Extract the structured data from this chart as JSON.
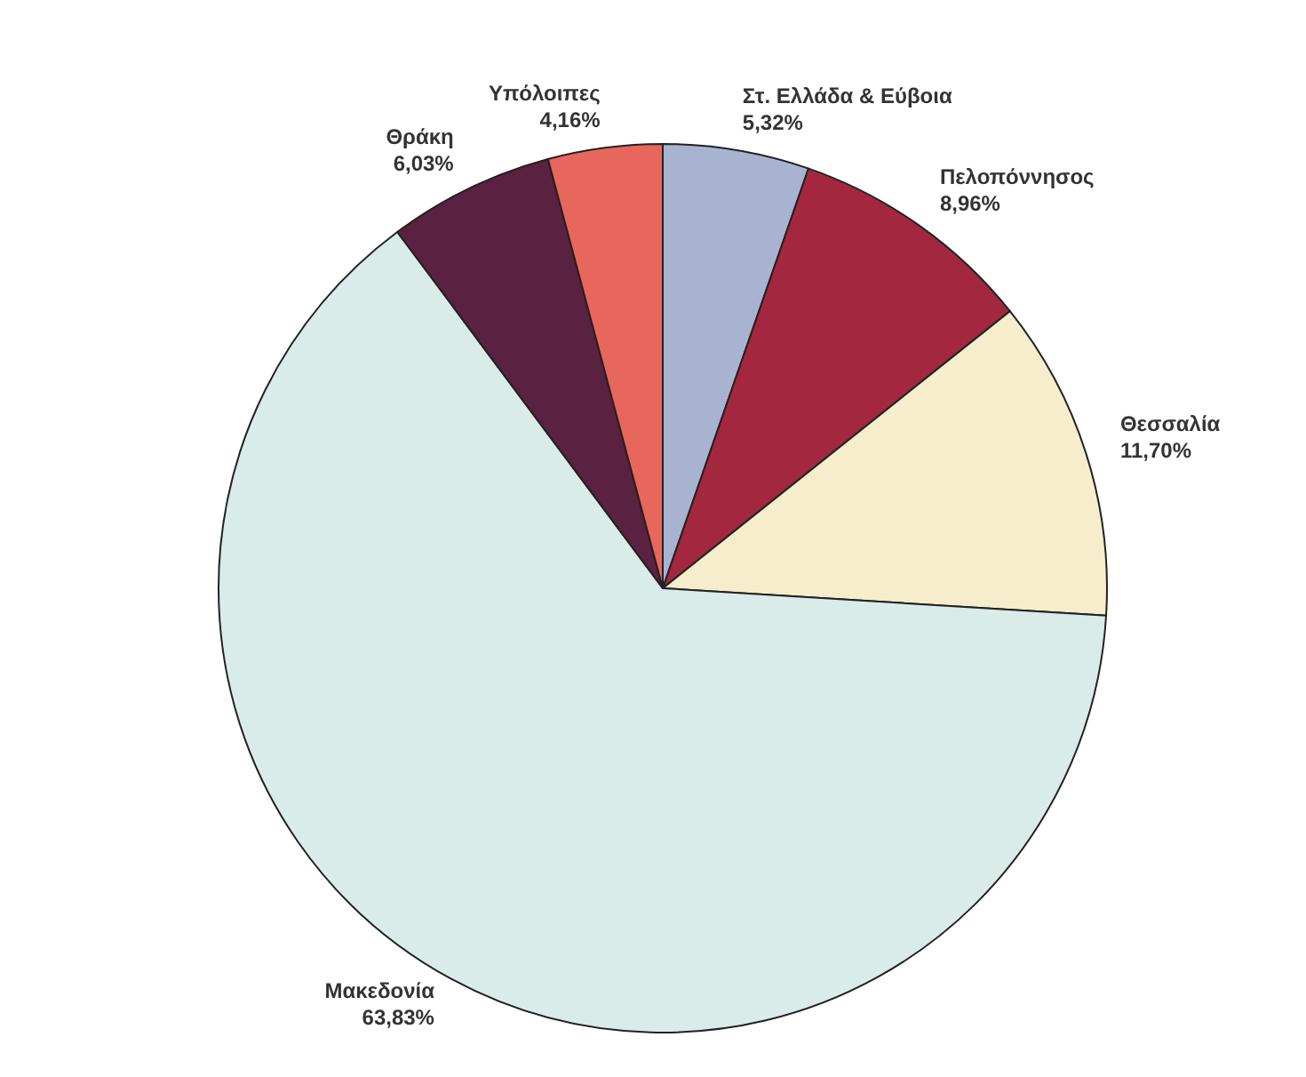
{
  "chart_data": {
    "type": "pie",
    "categories": [
      "Στ. Ελλάδα & Εύβοια",
      "Πελοπόννησος",
      "Θεσσαλία",
      "Μακεδονία",
      "Θράκη",
      "Υπόλοιπες"
    ],
    "values": [
      5.32,
      8.96,
      11.7,
      63.83,
      6.03,
      4.16
    ],
    "value_labels": [
      "5,32%",
      "8,96%",
      "11,70%",
      "63,83%",
      "6,03%",
      "4,16%"
    ],
    "colors": [
      "#a8b3d2",
      "#a3283f",
      "#f5edcb",
      "#d9ecea",
      "#5b2141",
      "#e8675c"
    ],
    "legend": false
  }
}
